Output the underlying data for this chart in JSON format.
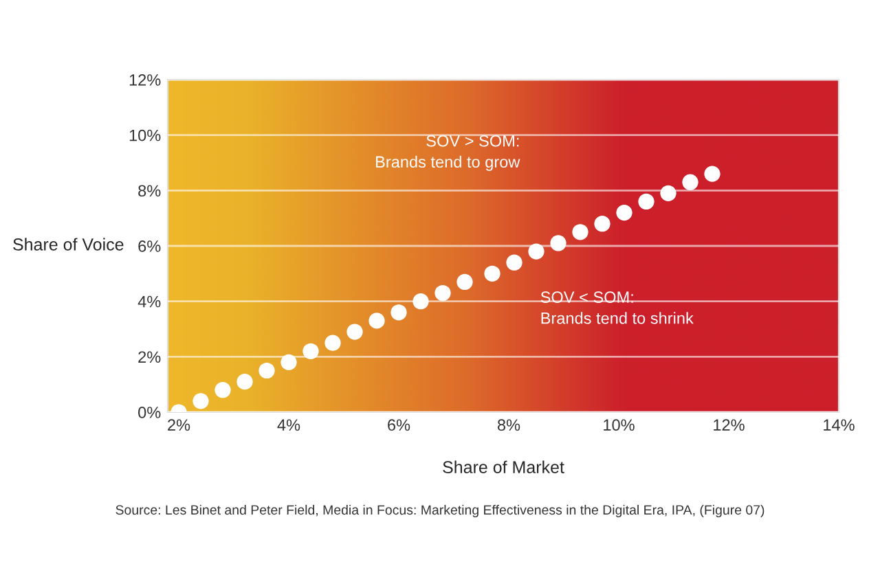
{
  "chart_data": {
    "type": "scatter",
    "xlabel": "Share of Market",
    "ylabel": "Share of Voice",
    "annotations": [
      "SOV > SOM:\nBrands tend to grow",
      "SOV < SOM:\nBrands tend to shrink",
      "Source: Les Binet and Peter Field, Media in Focus: Marketing Effectiveness in the Digital Era, IPA, (Figure 07)"
    ],
    "x": [
      2.0,
      2.4,
      2.8,
      3.2,
      3.6,
      4.0,
      4.4,
      4.8,
      5.2,
      5.6,
      6.0,
      6.4,
      6.8,
      7.2,
      7.7,
      8.1,
      8.5,
      8.9,
      9.3,
      9.7,
      10.1,
      10.5,
      10.9,
      11.3,
      11.7
    ],
    "series": [
      {
        "color": "#ffffff",
        "values": [
          0.0,
          0.4,
          0.8,
          1.1,
          1.5,
          1.8,
          2.2,
          2.5,
          2.9,
          3.3,
          3.6,
          4.0,
          4.3,
          4.7,
          5.0,
          5.4,
          5.8,
          6.1,
          6.5,
          6.8,
          7.2,
          7.6,
          7.9,
          8.3,
          8.6
        ]
      }
    ],
    "xlim": [
      1.8,
      14
    ],
    "ylim": [
      0,
      12
    ],
    "xticks": [
      {
        "value": 2,
        "label": "2%"
      },
      {
        "value": 4,
        "label": "4%"
      },
      {
        "value": 6,
        "label": "6%"
      },
      {
        "value": 8,
        "label": "8%"
      },
      {
        "value": 10,
        "label": "10%"
      },
      {
        "value": 12,
        "label": "12%"
      },
      {
        "value": 14,
        "label": "14%"
      }
    ],
    "yticks": [
      {
        "value": 0,
        "label": "0%"
      },
      {
        "value": 2,
        "label": "2%"
      },
      {
        "value": 4,
        "label": "4%"
      },
      {
        "value": 6,
        "label": "6%"
      },
      {
        "value": 8,
        "label": "8%"
      },
      {
        "value": 10,
        "label": "10%"
      },
      {
        "value": 12,
        "label": "12%"
      }
    ],
    "grid": "y",
    "marker": "circle",
    "legend": false
  }
}
